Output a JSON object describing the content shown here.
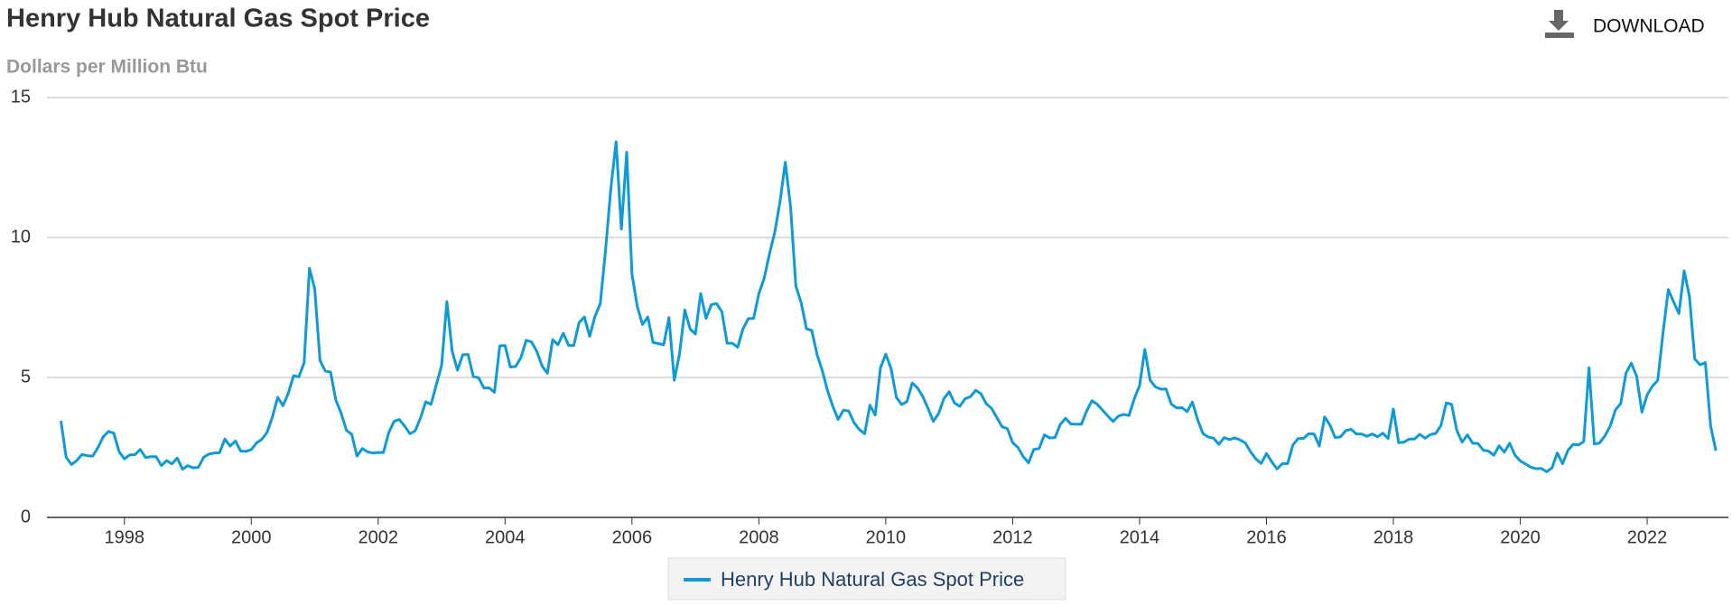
{
  "chart_data": {
    "type": "line",
    "title": "Henry Hub Natural Gas Spot Price",
    "subtitle": "Dollars per Million Btu",
    "download_label": "DOWNLOAD",
    "xlim": [
      1996.78,
      2023.28
    ],
    "xticks": [
      1998,
      2000,
      2002,
      2004,
      2006,
      2008,
      2010,
      2012,
      2014,
      2016,
      2018,
      2020,
      2022
    ],
    "ylim": [
      0,
      15
    ],
    "yticks": [
      0,
      5,
      10,
      15
    ],
    "grid": true,
    "legend": "bottom",
    "x": [
      1997,
      1997.083,
      1997.167,
      1997.25,
      1997.333,
      1997.417,
      1997.5,
      1997.583,
      1997.667,
      1997.75,
      1997.833,
      1997.917,
      1998,
      1998.083,
      1998.167,
      1998.25,
      1998.333,
      1998.417,
      1998.5,
      1998.583,
      1998.667,
      1998.75,
      1998.833,
      1998.917,
      1999,
      1999.083,
      1999.167,
      1999.25,
      1999.333,
      1999.417,
      1999.5,
      1999.583,
      1999.667,
      1999.75,
      1999.833,
      1999.917,
      2000,
      2000.083,
      2000.167,
      2000.25,
      2000.333,
      2000.417,
      2000.5,
      2000.583,
      2000.667,
      2000.75,
      2000.833,
      2000.917,
      2001,
      2001.083,
      2001.167,
      2001.25,
      2001.333,
      2001.417,
      2001.5,
      2001.583,
      2001.667,
      2001.75,
      2001.833,
      2001.917,
      2002,
      2002.083,
      2002.167,
      2002.25,
      2002.333,
      2002.417,
      2002.5,
      2002.583,
      2002.667,
      2002.75,
      2002.833,
      2002.917,
      2003,
      2003.083,
      2003.167,
      2003.25,
      2003.333,
      2003.417,
      2003.5,
      2003.583,
      2003.667,
      2003.75,
      2003.833,
      2003.917,
      2004,
      2004.083,
      2004.167,
      2004.25,
      2004.333,
      2004.417,
      2004.5,
      2004.583,
      2004.667,
      2004.75,
      2004.833,
      2004.917,
      2005,
      2005.083,
      2005.167,
      2005.25,
      2005.333,
      2005.417,
      2005.5,
      2005.583,
      2005.667,
      2005.75,
      2005.833,
      2005.917,
      2006,
      2006.083,
      2006.167,
      2006.25,
      2006.333,
      2006.417,
      2006.5,
      2006.583,
      2006.667,
      2006.75,
      2006.833,
      2006.917,
      2007,
      2007.083,
      2007.167,
      2007.25,
      2007.333,
      2007.417,
      2007.5,
      2007.583,
      2007.667,
      2007.75,
      2007.833,
      2007.917,
      2008,
      2008.083,
      2008.167,
      2008.25,
      2008.333,
      2008.417,
      2008.5,
      2008.583,
      2008.667,
      2008.75,
      2008.833,
      2008.917,
      2009,
      2009.083,
      2009.167,
      2009.25,
      2009.333,
      2009.417,
      2009.5,
      2009.583,
      2009.667,
      2009.75,
      2009.833,
      2009.917,
      2010,
      2010.083,
      2010.167,
      2010.25,
      2010.333,
      2010.417,
      2010.5,
      2010.583,
      2010.667,
      2010.75,
      2010.833,
      2010.917,
      2011,
      2011.083,
      2011.167,
      2011.25,
      2011.333,
      2011.417,
      2011.5,
      2011.583,
      2011.667,
      2011.75,
      2011.833,
      2011.917,
      2012,
      2012.083,
      2012.167,
      2012.25,
      2012.333,
      2012.417,
      2012.5,
      2012.583,
      2012.667,
      2012.75,
      2012.833,
      2012.917,
      2013,
      2013.083,
      2013.167,
      2013.25,
      2013.333,
      2013.417,
      2013.5,
      2013.583,
      2013.667,
      2013.75,
      2013.833,
      2013.917,
      2014,
      2014.083,
      2014.167,
      2014.25,
      2014.333,
      2014.417,
      2014.5,
      2014.583,
      2014.667,
      2014.75,
      2014.833,
      2014.917,
      2015,
      2015.083,
      2015.167,
      2015.25,
      2015.333,
      2015.417,
      2015.5,
      2015.583,
      2015.667,
      2015.75,
      2015.833,
      2015.917,
      2016,
      2016.083,
      2016.167,
      2016.25,
      2016.333,
      2016.417,
      2016.5,
      2016.583,
      2016.667,
      2016.75,
      2016.833,
      2016.917,
      2017,
      2017.083,
      2017.167,
      2017.25,
      2017.333,
      2017.417,
      2017.5,
      2017.583,
      2017.667,
      2017.75,
      2017.833,
      2017.917,
      2018,
      2018.083,
      2018.167,
      2018.25,
      2018.333,
      2018.417,
      2018.5,
      2018.583,
      2018.667,
      2018.75,
      2018.833,
      2018.917,
      2019,
      2019.083,
      2019.167,
      2019.25,
      2019.333,
      2019.417,
      2019.5,
      2019.583,
      2019.667,
      2019.75,
      2019.833,
      2019.917,
      2020,
      2020.083,
      2020.167,
      2020.25,
      2020.333,
      2020.417,
      2020.5,
      2020.583,
      2020.667,
      2020.75,
      2020.833,
      2020.917,
      2021,
      2021.083,
      2021.167,
      2021.25,
      2021.333,
      2021.417,
      2021.5,
      2021.583,
      2021.667,
      2021.75,
      2021.833,
      2021.917,
      2022,
      2022.083,
      2022.167,
      2022.25,
      2022.333,
      2022.417,
      2022.5,
      2022.583,
      2022.667,
      2022.75,
      2022.833,
      2022.917,
      2023,
      2023.083
    ],
    "series": [
      {
        "name": "Henry Hub Natural Gas Spot Price",
        "color": "#0e9ad7",
        "values": [
          3.45,
          2.15,
          1.89,
          2.03,
          2.25,
          2.2,
          2.19,
          2.49,
          2.88,
          3.07,
          3.01,
          2.35,
          2.09,
          2.23,
          2.24,
          2.43,
          2.14,
          2.17,
          2.17,
          1.85,
          2.03,
          1.91,
          2.12,
          1.72,
          1.85,
          1.77,
          1.79,
          2.15,
          2.26,
          2.3,
          2.31,
          2.8,
          2.55,
          2.73,
          2.37,
          2.36,
          2.42,
          2.66,
          2.79,
          3.04,
          3.59,
          4.29,
          3.99,
          4.43,
          5.06,
          5.02,
          5.52,
          8.9,
          8.17,
          5.61,
          5.23,
          5.19,
          4.19,
          3.72,
          3.11,
          2.97,
          2.19,
          2.46,
          2.34,
          2.3,
          2.32,
          2.32,
          3.03,
          3.43,
          3.5,
          3.26,
          2.99,
          3.09,
          3.55,
          4.13,
          4.04,
          4.74,
          5.43,
          7.71,
          5.93,
          5.26,
          5.81,
          5.82,
          5.03,
          4.99,
          4.62,
          4.63,
          4.47,
          6.13,
          6.14,
          5.37,
          5.39,
          5.71,
          6.33,
          6.27,
          5.93,
          5.41,
          5.15,
          6.35,
          6.17,
          6.58,
          6.15,
          6.14,
          6.96,
          7.16,
          6.47,
          7.18,
          7.63,
          9.53,
          11.75,
          13.42,
          10.3,
          13.05,
          8.69,
          7.54,
          6.89,
          7.16,
          6.25,
          6.21,
          6.17,
          7.14,
          4.9,
          5.85,
          7.41,
          6.73,
          6.55,
          8,
          7.11,
          7.6,
          7.64,
          7.35,
          6.22,
          6.22,
          6.08,
          6.74,
          7.1,
          7.11,
          7.99,
          8.54,
          9.41,
          10.18,
          11.27,
          12.69,
          11.09,
          8.26,
          7.67,
          6.74,
          6.68,
          5.82,
          5.24,
          4.52,
          3.96,
          3.5,
          3.83,
          3.8,
          3.38,
          3.14,
          2.99,
          4.01,
          3.66,
          5.35,
          5.83,
          5.32,
          4.29,
          4.03,
          4.14,
          4.8,
          4.63,
          4.32,
          3.89,
          3.43,
          3.71,
          4.25,
          4.49,
          4.09,
          3.97,
          4.24,
          4.31,
          4.54,
          4.42,
          4.06,
          3.9,
          3.57,
          3.24,
          3.17,
          2.67,
          2.5,
          2.17,
          1.95,
          2.43,
          2.46,
          2.95,
          2.84,
          2.85,
          3.32,
          3.54,
          3.34,
          3.33,
          3.33,
          3.81,
          4.17,
          4.04,
          3.83,
          3.62,
          3.43,
          3.62,
          3.68,
          3.64,
          4.24,
          4.71,
          6,
          4.9,
          4.66,
          4.58,
          4.59,
          4.05,
          3.91,
          3.92,
          3.78,
          4.12,
          3.48,
          2.99,
          2.87,
          2.83,
          2.61,
          2.85,
          2.78,
          2.84,
          2.77,
          2.66,
          2.34,
          2.09,
          1.93,
          2.28,
          1.99,
          1.73,
          1.92,
          1.92,
          2.59,
          2.82,
          2.82,
          2.99,
          2.98,
          2.55,
          3.59,
          3.3,
          2.85,
          2.88,
          3.1,
          3.15,
          2.98,
          2.98,
          2.9,
          2.98,
          2.88,
          3.01,
          2.82,
          3.87,
          2.67,
          2.69,
          2.8,
          2.8,
          2.97,
          2.83,
          2.96,
          3,
          3.28,
          4.09,
          4.04,
          3.11,
          2.69,
          2.95,
          2.65,
          2.64,
          2.4,
          2.37,
          2.22,
          2.56,
          2.33,
          2.65,
          2.22,
          2.02,
          1.91,
          1.79,
          1.74,
          1.75,
          1.63,
          1.77,
          2.3,
          1.92,
          2.39,
          2.61,
          2.59,
          2.71,
          5.35,
          2.62,
          2.66,
          2.91,
          3.26,
          3.84,
          4.07,
          5.16,
          5.51,
          5.05,
          3.76,
          4.38,
          4.69,
          4.9,
          6.6,
          8.14,
          7.7,
          7.28,
          8.81,
          7.88,
          5.66,
          5.45,
          5.53,
          3.27,
          2.38
        ]
      }
    ]
  }
}
